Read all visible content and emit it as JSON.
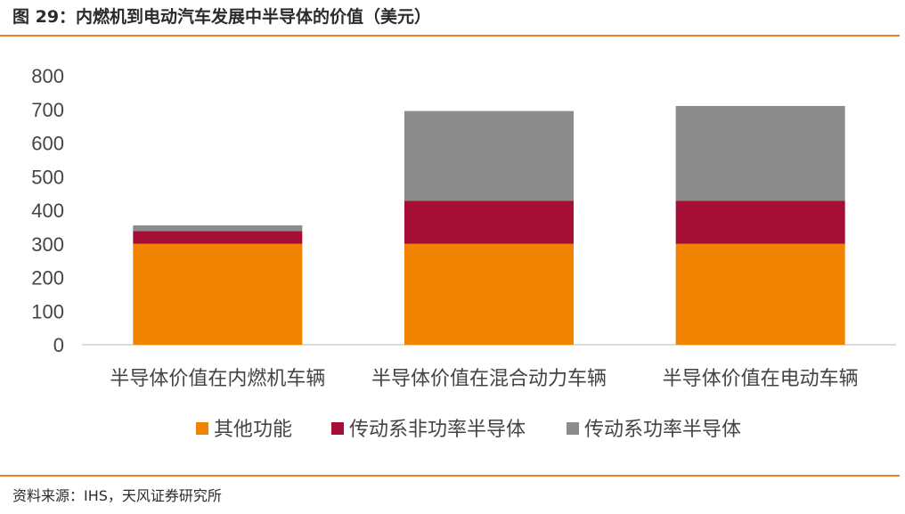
{
  "title": "图 29：内燃机到电动汽车发展中半导体的价值（美元）",
  "source": "资料来源：IHS，天风证券研究所",
  "chart_data": {
    "type": "bar",
    "stacked": true,
    "categories": [
      "半导体价值在内燃机车辆",
      "半导体价值在混合动力车辆",
      "半导体价值在电动车辆"
    ],
    "series": [
      {
        "name": "其他功能",
        "color": "#f08300",
        "values": [
          300,
          300,
          300
        ]
      },
      {
        "name": "传动系非功率半导体",
        "color": "#a50e35",
        "values": [
          38,
          128,
          128
        ]
      },
      {
        "name": "传动系功率半导体",
        "color": "#8c8c8c",
        "values": [
          17,
          267,
          282
        ]
      }
    ],
    "ylim": [
      0,
      800
    ],
    "yticks": [
      0,
      100,
      200,
      300,
      400,
      500,
      600,
      700,
      800
    ],
    "grid": false,
    "legend": "bottom"
  }
}
